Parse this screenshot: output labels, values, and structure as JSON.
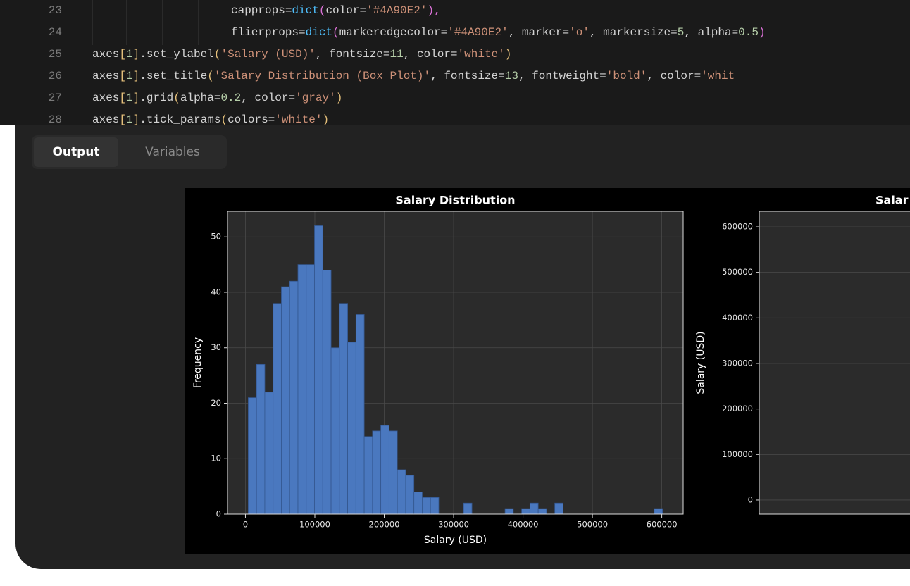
{
  "editor": {
    "lines": [
      {
        "number": "23",
        "tokens": [
          {
            "text": "capprops=",
            "color": "#d4d4d4"
          },
          {
            "text": "dict",
            "color": "#4fc1ff"
          },
          {
            "text": "(",
            "color": "#da70d6"
          },
          {
            "text": "color=",
            "color": "#d4d4d4"
          },
          {
            "text": "'#4A90E2'",
            "color": "#ce9178"
          },
          {
            "text": "),",
            "color": "#da70d6"
          }
        ]
      },
      {
        "number": "24",
        "tokens": [
          {
            "text": "flierprops=",
            "color": "#d4d4d4"
          },
          {
            "text": "dict",
            "color": "#4fc1ff"
          },
          {
            "text": "(",
            "color": "#da70d6"
          },
          {
            "text": "markeredgecolor=",
            "color": "#d4d4d4"
          },
          {
            "text": "'#4A90E2'",
            "color": "#ce9178"
          },
          {
            "text": ", marker=",
            "color": "#d4d4d4"
          },
          {
            "text": "'o'",
            "color": "#ce9178"
          },
          {
            "text": ", markersize=",
            "color": "#d4d4d4"
          },
          {
            "text": "5",
            "color": "#b5cea8"
          },
          {
            "text": ", alpha=",
            "color": "#d4d4d4"
          },
          {
            "text": "0.5",
            "color": "#b5cea8"
          },
          {
            "text": ")",
            "color": "#da70d6"
          }
        ]
      },
      {
        "number": "25",
        "tokens": [
          {
            "text": "axes",
            "color": "#d4d4d4"
          },
          {
            "text": "[",
            "color": "#e5c07b"
          },
          {
            "text": "1",
            "color": "#b5cea8"
          },
          {
            "text": "]",
            "color": "#e5c07b"
          },
          {
            "text": ".set_ylabel",
            "color": "#d4d4d4"
          },
          {
            "text": "(",
            "color": "#e5c07b"
          },
          {
            "text": "'Salary (USD)'",
            "color": "#ce9178"
          },
          {
            "text": ", fontsize=",
            "color": "#d4d4d4"
          },
          {
            "text": "11",
            "color": "#b5cea8"
          },
          {
            "text": ", color=",
            "color": "#d4d4d4"
          },
          {
            "text": "'white'",
            "color": "#ce9178"
          },
          {
            "text": ")",
            "color": "#e5c07b"
          }
        ]
      },
      {
        "number": "26",
        "tokens": [
          {
            "text": "axes",
            "color": "#d4d4d4"
          },
          {
            "text": "[",
            "color": "#e5c07b"
          },
          {
            "text": "1",
            "color": "#b5cea8"
          },
          {
            "text": "]",
            "color": "#e5c07b"
          },
          {
            "text": ".set_title",
            "color": "#d4d4d4"
          },
          {
            "text": "(",
            "color": "#e5c07b"
          },
          {
            "text": "'Salary Distribution (Box Plot)'",
            "color": "#ce9178"
          },
          {
            "text": ", fontsize=",
            "color": "#d4d4d4"
          },
          {
            "text": "13",
            "color": "#b5cea8"
          },
          {
            "text": ", fontweight=",
            "color": "#d4d4d4"
          },
          {
            "text": "'bold'",
            "color": "#ce9178"
          },
          {
            "text": ", color=",
            "color": "#d4d4d4"
          },
          {
            "text": "'whit",
            "color": "#ce9178"
          }
        ]
      },
      {
        "number": "27",
        "tokens": [
          {
            "text": "axes",
            "color": "#d4d4d4"
          },
          {
            "text": "[",
            "color": "#e5c07b"
          },
          {
            "text": "1",
            "color": "#b5cea8"
          },
          {
            "text": "]",
            "color": "#e5c07b"
          },
          {
            "text": ".grid",
            "color": "#d4d4d4"
          },
          {
            "text": "(",
            "color": "#e5c07b"
          },
          {
            "text": "alpha=",
            "color": "#d4d4d4"
          },
          {
            "text": "0.2",
            "color": "#b5cea8"
          },
          {
            "text": ", color=",
            "color": "#d4d4d4"
          },
          {
            "text": "'gray'",
            "color": "#ce9178"
          },
          {
            "text": ")",
            "color": "#e5c07b"
          }
        ]
      },
      {
        "number": "28",
        "tokens": [
          {
            "text": "axes",
            "color": "#d4d4d4"
          },
          {
            "text": "[",
            "color": "#e5c07b"
          },
          {
            "text": "1",
            "color": "#b5cea8"
          },
          {
            "text": "]",
            "color": "#e5c07b"
          },
          {
            "text": ".tick_params",
            "color": "#d4d4d4"
          },
          {
            "text": "(",
            "color": "#e5c07b"
          },
          {
            "text": "colors=",
            "color": "#d4d4d4"
          },
          {
            "text": "'white'",
            "color": "#ce9178"
          },
          {
            "text": ")",
            "color": "#e5c07b"
          }
        ]
      }
    ]
  },
  "tabs": [
    {
      "label": "Output",
      "active": true
    },
    {
      "label": "Variables",
      "active": false
    }
  ],
  "chart_data": [
    {
      "type": "histogram",
      "title": "Salary Distribution",
      "x_label": "Salary (USD)",
      "y_label": "Frequency",
      "bins": [
        4000,
        15940,
        27880,
        39820,
        51760,
        63700,
        75640,
        87580,
        99520,
        111460,
        123400,
        135340,
        147280,
        159220,
        171160,
        183100,
        195040,
        206980,
        218920,
        230860,
        242800,
        254740,
        266680,
        278620,
        290560,
        302500,
        314440,
        326380,
        338320,
        350260,
        362200,
        374140,
        386080,
        398020,
        409960,
        421900,
        433840,
        445780,
        457720,
        469660,
        481600,
        493540,
        505480,
        517420,
        529360,
        541300,
        553240,
        565180,
        577120,
        589060,
        601000
      ],
      "values": [
        21,
        27,
        22,
        38,
        41,
        42,
        45,
        45,
        52,
        44,
        30,
        38,
        31,
        36,
        14,
        15,
        16,
        15,
        8,
        7,
        4,
        3,
        3,
        0,
        0,
        0,
        2,
        0,
        0,
        0,
        0,
        1,
        0,
        1,
        2,
        1,
        0,
        2,
        0,
        0,
        0,
        0,
        0,
        0,
        0,
        0,
        0,
        0,
        0,
        1
      ],
      "color": "#4a78bf",
      "xlim": [
        -25850,
        630850
      ],
      "xticks": [
        0,
        100000,
        200000,
        300000,
        400000,
        500000,
        600000
      ],
      "ylim": [
        0,
        54.6
      ],
      "yticks": [
        0,
        10,
        20,
        30,
        40,
        50
      ],
      "grid": true
    },
    {
      "type": "box",
      "title": "Salar",
      "y_label": "Salary (USD)",
      "ylim": [
        -31000,
        634000
      ],
      "yticks": [
        0,
        100000,
        200000,
        300000,
        400000,
        500000,
        600000
      ],
      "grid": true
    }
  ]
}
